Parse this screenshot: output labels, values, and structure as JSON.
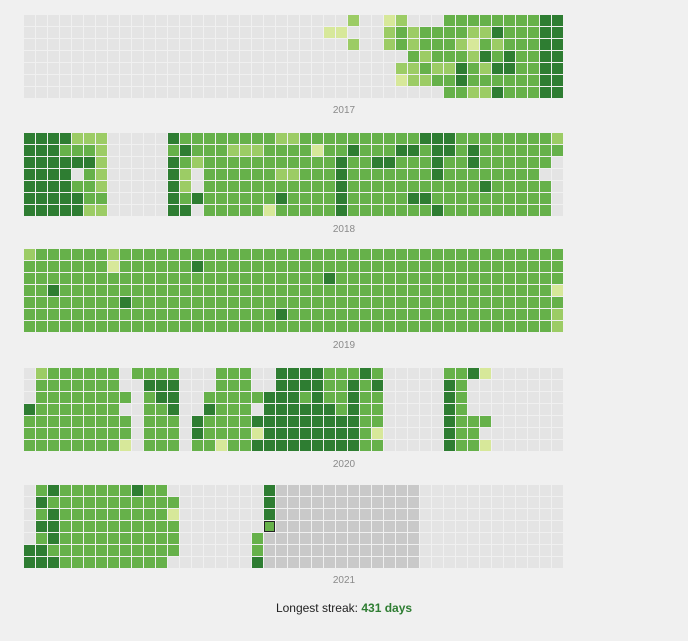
{
  "palette": {
    "empty": "#e4e4e4",
    "future": "#c9c9c9",
    "l1": "#d7e89a",
    "l2": "#9ccc65",
    "l3": "#66b14a",
    "l4": "#2e7d32",
    "today_border": "#222222"
  },
  "years": [
    {
      "label": "2017",
      "rows": [
        "000000000000000000000000000200120003333333344",
        "000000000000000000000000011000232333322433344",
        "000000000000000000000000000200232333213233344",
        "000000000000000000000000000000003233324343344",
        "000000000000000000000000000000022322432443344",
        "000000000000000000000000000000012233433333344",
        "000000000000000000000000000000000003322433344"
      ]
    },
    {
      "label": "2018",
      "rows": [
        "444422200000433333333223333333333444333333332",
        "444333200000343332223333133433344344343333333",
        "444444200000432333333333334334433343343333330",
        "444403200000420333333223334333333343333333300",
        "444433200000420333333333334333333333334333330",
        "444443300000434333333433334333334433333333330",
        "444442200000440333331333334333333343333333330"
      ]
    },
    {
      "label": "2019",
      "rows": [
        "233333323333333333333333333333333333333333333",
        "333333313333334333333333333333333333333333333",
        "333333333333333333333333343333333333333333333",
        "334333333333333333333333333333333333333333331",
        "333333334333333333333333333333333333333333333",
        "333333333333333333333433333333333333333333332",
        "333333333333333333333333333333333333333333332"
      ]
    },
    {
      "label": "2020",
      "rows": [
        "023333330333300033300444433343000003341000000",
        "033333330044400033300444433434000004300000000",
        "033333333034400333334443433433000004300000000",
        "433333330033400433304444443433000004300000000",
        "333333333033304333344444444433000004333000000",
        "333333333033304333314444444431000004330000000",
        "333333331033303313344444444433000004331000000"
      ]
    },
    {
      "label": "2021",
      "rows": [
        "034333333433000000004999999999999000000000000",
        "043333333333300000004999999999999000000000000",
        "034333333333100000004999999999999000000000000",
        "044333333333300000005999999999999000000000000",
        "034333333333300000039999999999999000000000000",
        "443333333333300000039999999999999000000000000",
        "444333333333000000049999999999999000000000000"
      ]
    }
  ],
  "streak": {
    "label": "Longest streak:",
    "value": "431 days"
  }
}
